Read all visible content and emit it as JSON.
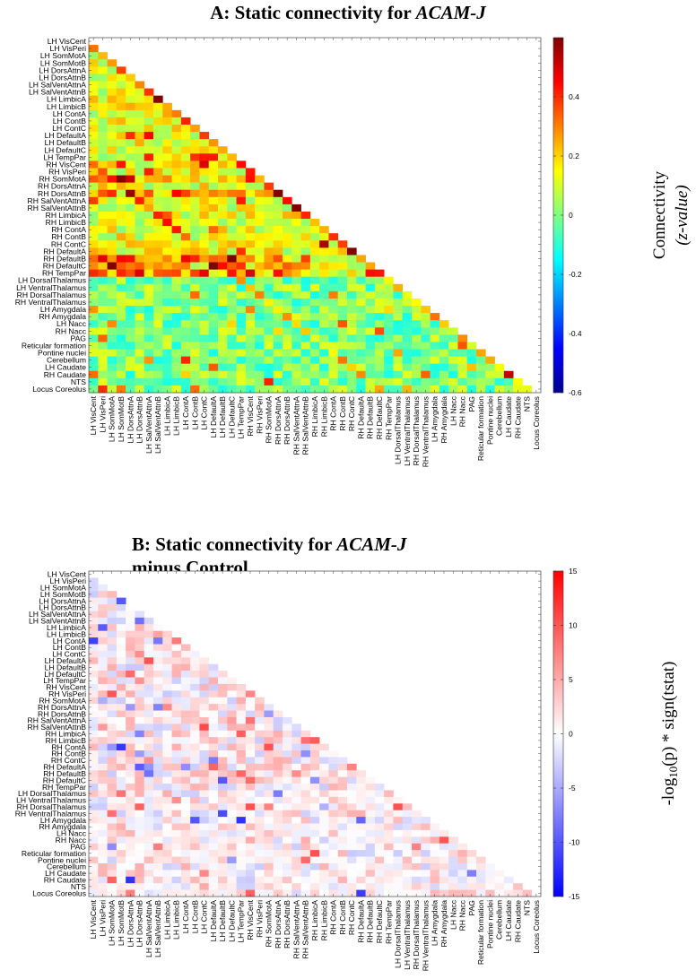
{
  "chart_data": [
    {
      "type": "heatmap",
      "id": "A",
      "title_prefix": "A: Static connectivity for ",
      "title_italic": "ACAM-J",
      "title_line2": "",
      "colormap": "jet",
      "clim": [
        -0.6,
        0.6
      ],
      "colorbar_ticks": [
        0.4,
        0.2,
        0,
        -0.2,
        -0.4,
        -0.6
      ],
      "colorbar_tick_labels": [
        "0.4",
        "0.2",
        "0",
        "-0.2",
        "-0.4",
        "-0.6"
      ],
      "colorbar_label_line1": "Connectivity",
      "colorbar_label_line2": "(z-value)",
      "triangle": "lower",
      "values_note": "approximate; strong values sampled below"
    },
    {
      "type": "heatmap",
      "id": "B",
      "title_prefix": "B: Static connectivity for ",
      "title_italic": "ACAM-J",
      "title_line2": "minus Control",
      "colormap": "blue-white-red",
      "clim": [
        -15,
        15
      ],
      "colorbar_ticks": [
        15,
        10,
        5,
        0,
        -5,
        -10,
        -15
      ],
      "colorbar_tick_labels": [
        "15",
        "10",
        "5",
        "0",
        "-5",
        "-10",
        "-15"
      ],
      "colorbar_label_text": "-log10(p) * sign(tstat)",
      "colorbar_label_pre": "-log",
      "colorbar_label_sub": "10",
      "colorbar_label_post": "(p) * sign(tstat)",
      "triangle": "lower"
    }
  ],
  "regions": [
    "LH VisCent",
    "LH VisPeri",
    "LH SomMotA",
    "LH SomMotB",
    "LH DorsAttnA",
    "LH DorsAttnB",
    "LH SalVentAttnA",
    "LH SalVentAttnB",
    "LH LimbicA",
    "LH LimbicB",
    "LH ContA",
    "LH ContB",
    "LH ContC",
    "LH DefaultA",
    "LH DefaultB",
    "LH DefaultC",
    "LH TempPar",
    "RH VisCent",
    "RH VisPeri",
    "RH SomMotA",
    "RH DorsAttnA",
    "RH DorsAttnB",
    "RH SalVentAttnA",
    "RH SalVentAttnB",
    "RH LimbicA",
    "RH LimbicB",
    "RH ContA",
    "RH ContB",
    "RH ContC",
    "RH DefaultA",
    "RH DefaultB",
    "RH DefaultC",
    "RH TempPar",
    "LH DorsalThalamus",
    "LH VentralThalamus",
    "RH DorsalThalamus",
    "RH VentralThalamus",
    "LH Amygdala",
    "RH Amygdala",
    "LH Nacc",
    "RH Nacc",
    "PAG",
    "Reticular formation",
    "Pontine nuclei",
    "Cerebellum",
    "LH Caudate",
    "RH Caudate",
    "NTS",
    "Locus Coreolus"
  ]
}
